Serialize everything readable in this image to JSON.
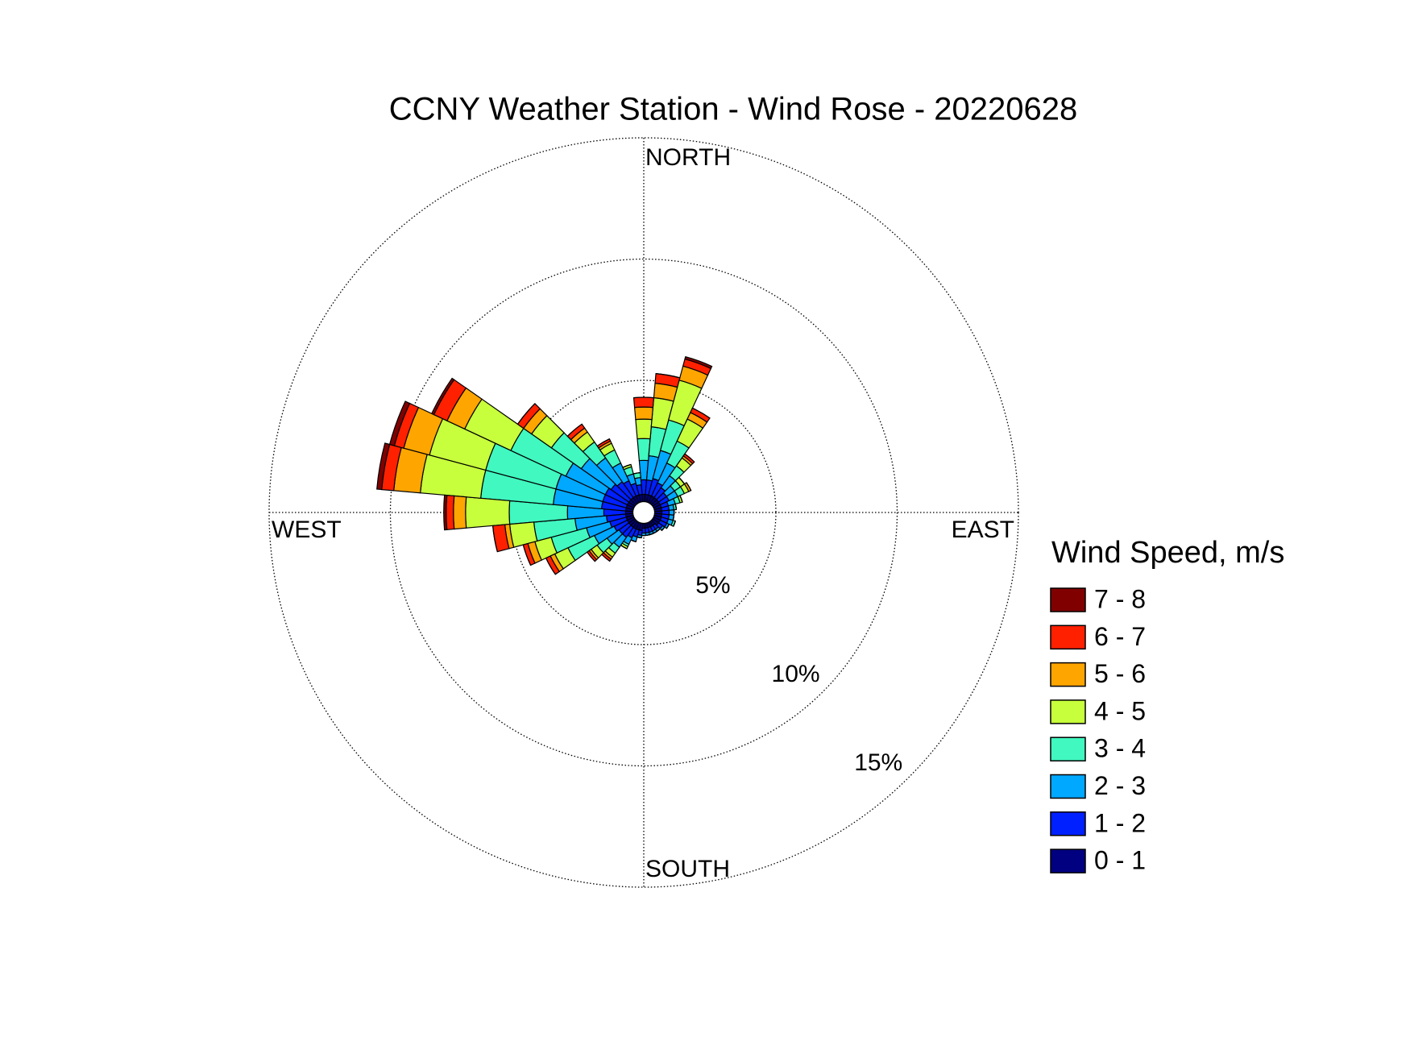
{
  "chart_data": {
    "type": "windrose",
    "title": "CCNY Weather Station - Wind Rose - 20220628",
    "direction_labels": [
      "NORTH",
      "EAST",
      "SOUTH",
      "WEST"
    ],
    "legend_title": "Wind Speed, m/s",
    "directions": [
      0,
      10,
      20,
      30,
      40,
      50,
      60,
      70,
      80,
      90,
      100,
      110,
      120,
      130,
      140,
      150,
      160,
      170,
      180,
      190,
      200,
      210,
      220,
      230,
      240,
      250,
      260,
      270,
      280,
      290,
      300,
      310,
      320,
      330,
      340,
      350
    ],
    "rlim": [
      0,
      15
    ],
    "rticks": [
      {
        "value": 5,
        "label": "5%"
      },
      {
        "value": 10,
        "label": "10%"
      },
      {
        "value": 15,
        "label": "15%"
      }
    ],
    "grid": true,
    "series": [
      {
        "name": "0 - 1",
        "color": "#000080",
        "values": [
          0.3,
          0.3,
          0.3,
          0.3,
          0.3,
          0.3,
          0.3,
          0.3,
          0.3,
          0.3,
          0.3,
          0.3,
          0.3,
          0.3,
          0.2,
          0.2,
          0.2,
          0.2,
          0.2,
          0.3,
          0.3,
          0.3,
          0.3,
          0.3,
          0.3,
          0.3,
          0.3,
          0.3,
          0.3,
          0.3,
          0.3,
          0.3,
          0.3,
          0.3,
          0.3,
          0.3
        ]
      },
      {
        "name": "1 - 2",
        "color": "#0020ff",
        "values": [
          0.6,
          0.6,
          0.7,
          0.6,
          0.5,
          0.4,
          0.4,
          0.3,
          0.3,
          0.3,
          0.3,
          0.3,
          0.3,
          0.2,
          0.2,
          0.2,
          0.2,
          0.2,
          0.2,
          0.2,
          0.3,
          0.4,
          0.5,
          0.5,
          0.6,
          0.7,
          0.8,
          0.9,
          1.0,
          1.0,
          1.0,
          0.9,
          0.8,
          0.7,
          0.5,
          0.4
        ]
      },
      {
        "name": "2 - 3",
        "color": "#00a8ff",
        "values": [
          0.8,
          1.0,
          1.2,
          0.9,
          0.6,
          0.4,
          0.4,
          0.3,
          0.2,
          0.2,
          0.2,
          0.2,
          0.1,
          0.1,
          0.1,
          0.1,
          0.1,
          0.1,
          0.1,
          0.1,
          0.2,
          0.3,
          0.5,
          0.6,
          0.9,
          1.0,
          1.3,
          1.5,
          2.0,
          2.0,
          1.8,
          1.5,
          1.2,
          0.8,
          0.4,
          0.3
        ]
      },
      {
        "name": "3 - 4",
        "color": "#40f8c0",
        "values": [
          0.9,
          1.2,
          1.3,
          1.0,
          0.5,
          0.3,
          0.3,
          0.2,
          0.1,
          0,
          0,
          0.1,
          0,
          0,
          0,
          0,
          0,
          0,
          0,
          0,
          0,
          0.1,
          0.3,
          0.5,
          1.2,
          1.5,
          1.7,
          2.4,
          3.0,
          3.0,
          2.5,
          1.5,
          0.8,
          0.6,
          0.3,
          0.2
        ]
      },
      {
        "name": "4 - 5",
        "color": "#c8ff3c",
        "values": [
          0.8,
          1.2,
          1.7,
          1.0,
          0.4,
          0.2,
          0.2,
          0.1,
          0,
          0,
          0,
          0,
          0,
          0,
          0,
          0,
          0,
          0,
          0,
          0,
          0,
          0.1,
          0.2,
          0.3,
          0.6,
          0.7,
          1.0,
          1.8,
          2.5,
          2.4,
          2.1,
          1.0,
          0.5,
          0.3,
          0.1,
          0
        ]
      },
      {
        "name": "5 - 6",
        "color": "#ffa500",
        "values": [
          0.5,
          0.6,
          0.6,
          0.3,
          0.1,
          0,
          0.1,
          0,
          0,
          0,
          0,
          0,
          0,
          0,
          0,
          0,
          0,
          0,
          0,
          0,
          0,
          0,
          0.1,
          0.1,
          0.2,
          0.3,
          0.2,
          0.5,
          1.1,
          1.1,
          0.8,
          0.4,
          0.2,
          0.1,
          0,
          0
        ]
      },
      {
        "name": "6 - 7",
        "color": "#ff2000",
        "values": [
          0.4,
          0.4,
          0.3,
          0.2,
          0.1,
          0,
          0,
          0,
          0,
          0,
          0,
          0,
          0,
          0,
          0,
          0,
          0,
          0,
          0,
          0,
          0,
          0,
          0.1,
          0.1,
          0.2,
          0.2,
          0.5,
          0.3,
          0.5,
          0.4,
          0.6,
          0.3,
          0.2,
          0.1,
          0,
          0
        ]
      },
      {
        "name": "7 - 8",
        "color": "#800000",
        "values": [
          0,
          0,
          0.1,
          0,
          0,
          0,
          0,
          0,
          0,
          0,
          0,
          0,
          0,
          0,
          0,
          0,
          0,
          0,
          0,
          0,
          0,
          0,
          0,
          0,
          0,
          0,
          0,
          0.1,
          0.2,
          0.2,
          0.1,
          0,
          0,
          0,
          0,
          0
        ]
      }
    ]
  }
}
